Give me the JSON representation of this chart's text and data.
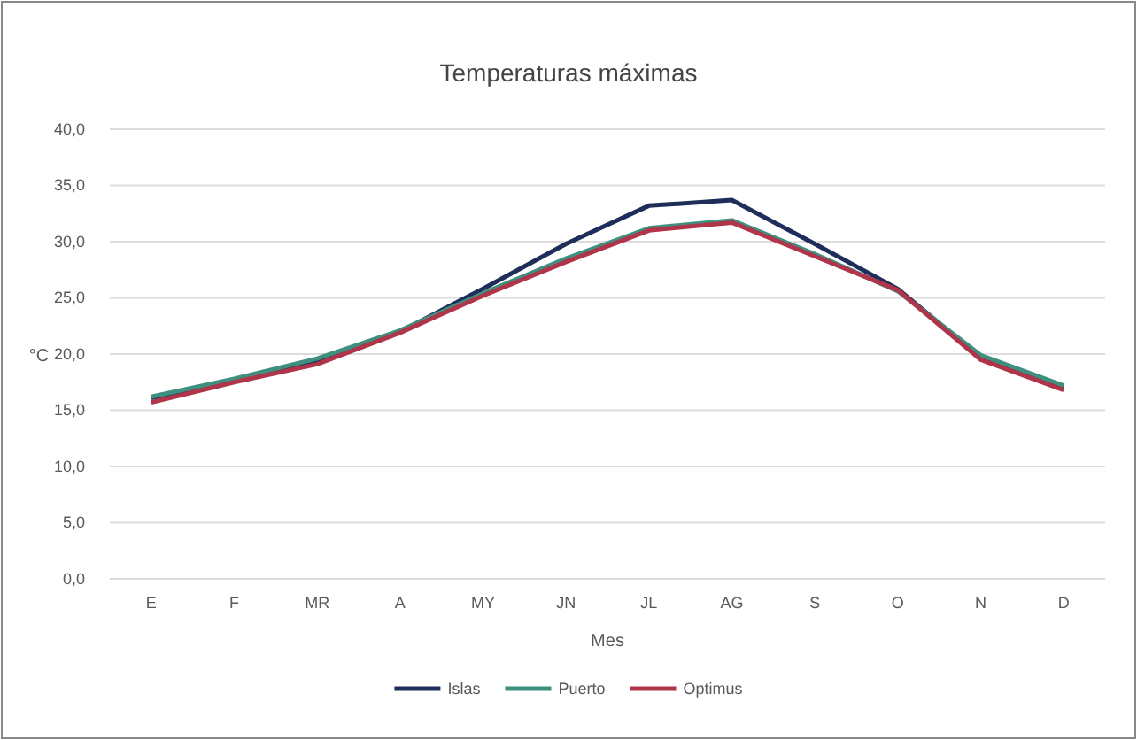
{
  "chart_data": {
    "type": "line",
    "title": "Temperaturas máximas",
    "xlabel": "Mes",
    "ylabel": "°C",
    "categories": [
      "E",
      "F",
      "MR",
      "A",
      "MY",
      "JN",
      "JL",
      "AG",
      "S",
      "O",
      "N",
      "D"
    ],
    "series": [
      {
        "name": "Islas",
        "color": "#1f2d5a",
        "values": [
          16.1,
          17.6,
          19.4,
          22.0,
          25.8,
          29.8,
          33.2,
          33.7,
          29.8,
          25.8,
          19.7,
          17.0
        ]
      },
      {
        "name": "Puerto",
        "color": "#3f8f7f",
        "values": [
          16.2,
          17.8,
          19.6,
          22.1,
          25.4,
          28.5,
          31.2,
          31.9,
          28.9,
          25.6,
          19.9,
          17.2
        ]
      },
      {
        "name": "Optimus",
        "color": "#b0344a",
        "values": [
          15.7,
          17.5,
          19.1,
          21.9,
          25.2,
          28.2,
          31.0,
          31.7,
          28.7,
          25.7,
          19.5,
          16.8
        ]
      }
    ],
    "ylim": [
      0,
      40
    ],
    "yticks": [
      {
        "value": 0,
        "label": "0,0"
      },
      {
        "value": 5,
        "label": "5,0"
      },
      {
        "value": 10,
        "label": "10,0"
      },
      {
        "value": 15,
        "label": "15,0"
      },
      {
        "value": 20,
        "label": "20,0"
      },
      {
        "value": 25,
        "label": "25,0"
      },
      {
        "value": 30,
        "label": "30,0"
      },
      {
        "value": 35,
        "label": "35,0"
      },
      {
        "value": 40,
        "label": "40,0"
      }
    ],
    "grid": "y",
    "legend": "bottom",
    "marker": "none",
    "line_style": "solid"
  }
}
